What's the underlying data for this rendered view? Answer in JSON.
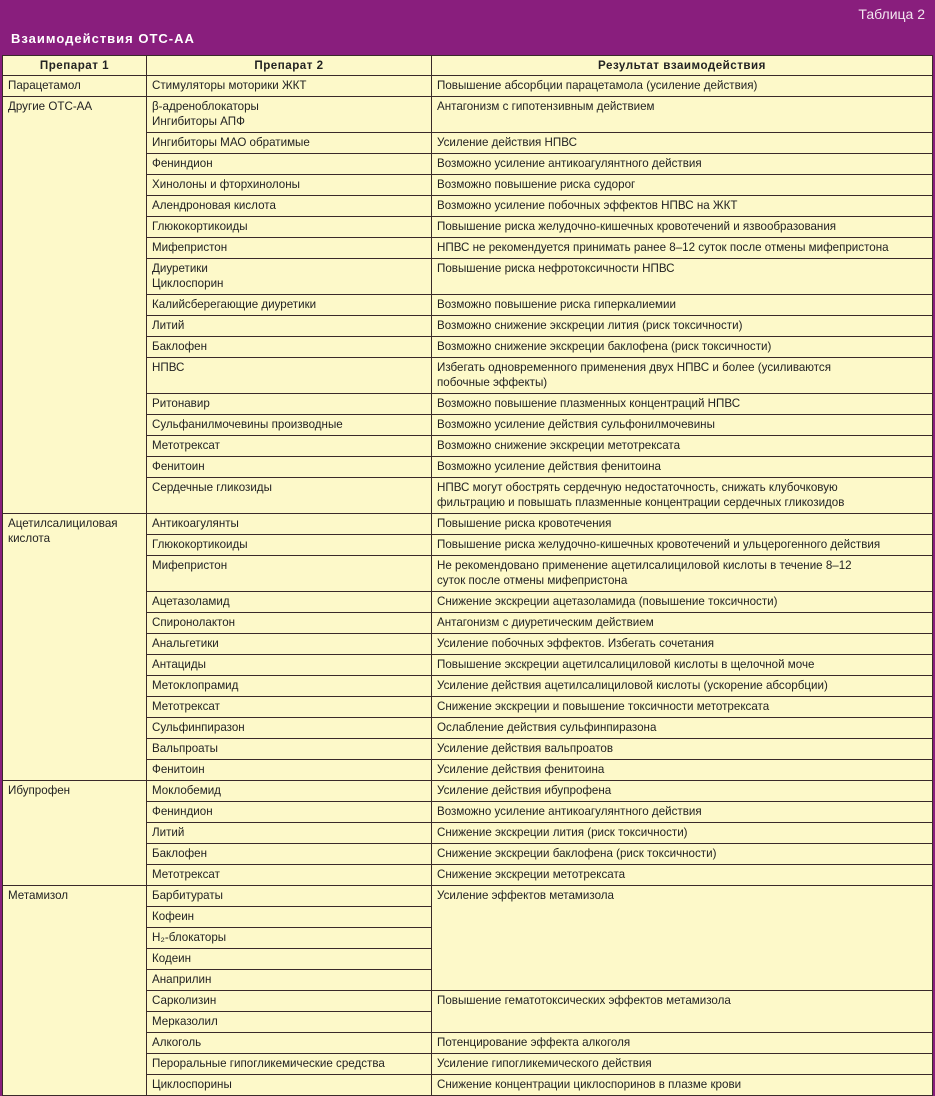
{
  "caption": "Таблица 2",
  "title": "Взаимодействия ОТС-АА",
  "headers": [
    "Препарат 1",
    "Препарат 2",
    "Результат взаимодействия"
  ],
  "colors": {
    "header_bg": "#891e7d",
    "cell_bg": "#fdf9c9"
  },
  "groups": [
    {
      "drug1": "Парацетамол",
      "rows": [
        {
          "drug2": "Стимуляторы моторики ЖКТ",
          "result": "Повышение абсорбции парацетамола (усиление действия)"
        }
      ]
    },
    {
      "drug1": "Другие ОТС-АА",
      "rows": [
        {
          "drug2": "β-адреноблокаторы\nИнгибиторы АПФ",
          "result": "Антагонизм с гипотензивным действием"
        },
        {
          "drug2": "Ингибиторы МАО обратимые",
          "result": "Усиление действия НПВС"
        },
        {
          "drug2": "Фениндион",
          "result": "Возможно усиление антикоагулянтного действия"
        },
        {
          "drug2": "Хинолоны и фторхинолоны",
          "result": "Возможно повышение риска судорог"
        },
        {
          "drug2": "Алендроновая кислота",
          "result": "Возможно усиление побочных эффектов НПВС на ЖКТ"
        },
        {
          "drug2": "Глюкокортикоиды",
          "result": "Повышение риска желудочно-кишечных кровотечений и язвообразования"
        },
        {
          "drug2": "Мифепристон",
          "result": "НПВС не рекомендуется принимать ранее 8–12 суток после отмены мифепристона"
        },
        {
          "drug2": "Диуретики\nЦиклоспорин",
          "result": "Повышение риска нефротоксичности НПВС"
        },
        {
          "drug2": "Калийсберегающие диуретики",
          "result": "Возможно повышение риска гиперкалиемии"
        },
        {
          "drug2": "Литий",
          "result": "Возможно снижение экскреции лития (риск токсичности)"
        },
        {
          "drug2": "Баклофен",
          "result": "Возможно снижение экскреции баклофена (риск токсичности)"
        },
        {
          "drug2": "НПВС",
          "result": "Избегать одновременного применения двух НПВС и более (усиливаются\nпобочные эффекты)"
        },
        {
          "drug2": "Ритонавир",
          "result": "Возможно повышение плазменных концентраций НПВС"
        },
        {
          "drug2": "Сульфанилмочевины производные",
          "result": "Возможно усиление действия сульфонилмочевины"
        },
        {
          "drug2": "Метотрексат",
          "result": "Возможно снижение экскреции метотрексата"
        },
        {
          "drug2": "Фенитоин",
          "result": "Возможно усиление действия фенитоина"
        },
        {
          "drug2": "Сердечные гликозиды",
          "result": "НПВС могут обострять сердечную недостаточность, снижать клубочковую\nфильтрацию и повышать плазменные концентрации сердечных гликозидов"
        }
      ]
    },
    {
      "drug1": "Ацетилсалициловая\nкислота",
      "rows": [
        {
          "drug2": "Антикоагулянты",
          "result": "Повышение риска кровотечения"
        },
        {
          "drug2": "Глюкокортикоиды",
          "result": "Повышение риска желудочно-кишечных кровотечений и ульцерогенного действия"
        },
        {
          "drug2": "Мифепристон",
          "result": "Не рекомендовано применение ацетилсалициловой кислоты в течение 8–12\nсуток после отмены мифепристона"
        },
        {
          "drug2": "Ацетазоламид",
          "result": "Снижение экскреции ацетазоламида (повышение токсичности)"
        },
        {
          "drug2": "Спиронолактон",
          "result": "Антагонизм с диуретическим действием"
        },
        {
          "drug2": "Анальгетики",
          "result": "Усиление побочных эффектов. Избегать сочетания"
        },
        {
          "drug2": "Антациды",
          "result": "Повышение экскреции ацетилсалициловой кислоты в щелочной моче"
        },
        {
          "drug2": "Метоклопрамид",
          "result": "Усиление действия ацетилсалициловой кислоты (ускорение абсорбции)"
        },
        {
          "drug2": "Метотрексат",
          "result": "Снижение экскреции и повышение токсичности метотрексата"
        },
        {
          "drug2": "Сульфинпиразон",
          "result": "Ослабление действия сульфинпиразона"
        },
        {
          "drug2": "Вальпроаты",
          "result": "Усиление действия вальпроатов"
        },
        {
          "drug2": "Фенитоин",
          "result": "Усиление действия фенитоина"
        }
      ]
    },
    {
      "drug1": "Ибупрофен",
      "rows": [
        {
          "drug2": "Моклобемид",
          "result": "Усиление действия ибупрофена"
        },
        {
          "drug2": "Фениндион",
          "result": "Возможно усиление антикоагулянтного действия"
        },
        {
          "drug2": "Литий",
          "result": "Снижение экскреции лития (риск токсичности)"
        },
        {
          "drug2": "Баклофен",
          "result": "Снижение экскреции баклофена (риск токсичности)"
        },
        {
          "drug2": "Метотрексат",
          "result": "Снижение экскреции метотрексата"
        }
      ]
    },
    {
      "drug1": "Метамизол",
      "rows": [
        {
          "drug2": "Барбитураты",
          "result": "Усиление эффектов метамизола",
          "span": 5
        },
        {
          "drug2": "Кофеин"
        },
        {
          "drug2": "Н₂-блокаторы"
        },
        {
          "drug2": "Кодеин"
        },
        {
          "drug2": "Анаприлин"
        },
        {
          "drug2": "Сарколизин",
          "result": "Повышение гематотоксических эффектов метамизола",
          "span": 2
        },
        {
          "drug2": "Мерказолил"
        },
        {
          "drug2": "Алкоголь",
          "result": "Потенцирование эффекта алкоголя"
        },
        {
          "drug2": "Пероральные гипогликемические средства",
          "result": "Усиление гипогликемического действия"
        },
        {
          "drug2": "Циклоспорины",
          "result": "Снижение концентрации циклоспоринов в плазме крови"
        }
      ]
    }
  ]
}
